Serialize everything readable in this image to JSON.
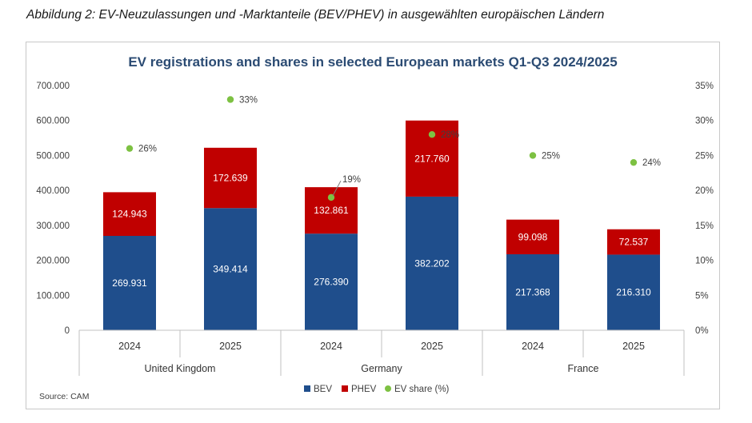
{
  "caption": {
    "lead": "Abbildung 2:",
    "text": "EV-Neuzulassungen und -Marktanteile (BEV/PHEV) in ausgewählten europäischen Ländern"
  },
  "source": "Source: CAM",
  "chart_data": {
    "type": "bar",
    "stacked": true,
    "title": "EV registrations and shares in selected European markets Q1-Q3 2024/2025",
    "categories": [
      "2024",
      "2025",
      "2024",
      "2025",
      "2024",
      "2025"
    ],
    "groups": [
      {
        "label": "United Kingdom",
        "span": [
          0,
          1
        ]
      },
      {
        "label": "Germany",
        "span": [
          2,
          3
        ]
      },
      {
        "label": "France",
        "span": [
          4,
          5
        ]
      }
    ],
    "series": [
      {
        "name": "BEV",
        "color": "#1f4e8c",
        "values": [
          269931,
          349414,
          276390,
          382202,
          217368,
          216310
        ],
        "labels": [
          "269.931",
          "349.414",
          "276.390",
          "382.202",
          "217.368",
          "216.310"
        ]
      },
      {
        "name": "PHEV",
        "color": "#c00000",
        "values": [
          124943,
          172639,
          132861,
          217760,
          99098,
          72537
        ],
        "labels": [
          "124.943",
          "172.639",
          "132.861",
          "217.760",
          "99.098",
          "72.537"
        ]
      }
    ],
    "share_series": {
      "name": "EV share (%)",
      "color": "#7dc142",
      "values": [
        26,
        33,
        19,
        28,
        25,
        24
      ],
      "labels": [
        "26%",
        "33%",
        "19%",
        "28%",
        "25%",
        "24%"
      ]
    },
    "ylim": [
      0,
      700000
    ],
    "yticks": [
      "0",
      "100.000",
      "200.000",
      "300.000",
      "400.000",
      "500.000",
      "600.000",
      "700.000"
    ],
    "y2lim": [
      0,
      35
    ],
    "y2ticks": [
      "0%",
      "5%",
      "10%",
      "15%",
      "20%",
      "25%",
      "30%",
      "35%"
    ],
    "legend_position": "bottom",
    "grid": false
  }
}
